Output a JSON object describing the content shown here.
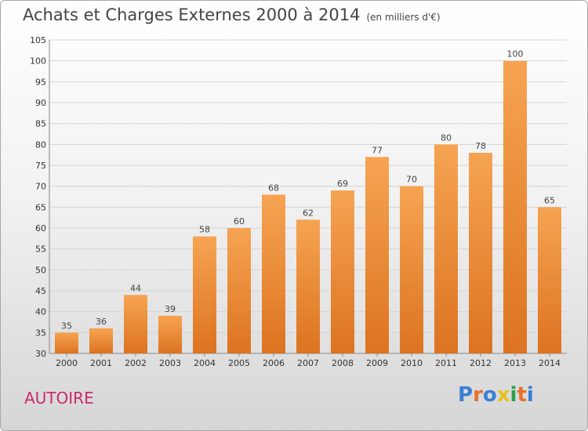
{
  "header": {
    "title": "Achats et Charges Externes 2000 à 2014",
    "subtitle": "(en milliers d'€)"
  },
  "footer": {
    "commune": "AUTOIRE",
    "logo": "Proxiti",
    "logo_colors": [
      "#3a7fd5",
      "#e8722a",
      "#3a7fd5",
      "#e8c21a",
      "#2aa04a",
      "#e8722a",
      "#3a7fd5"
    ]
  },
  "chart_data": {
    "type": "bar",
    "categories": [
      "2000",
      "2001",
      "2002",
      "2003",
      "2004",
      "2005",
      "2006",
      "2007",
      "2008",
      "2009",
      "2010",
      "2011",
      "2012",
      "2013",
      "2014"
    ],
    "values": [
      35,
      36,
      44,
      39,
      58,
      60,
      68,
      62,
      69,
      77,
      70,
      80,
      78,
      100,
      65
    ],
    "ylim": [
      30,
      105
    ],
    "yticks": [
      30,
      35,
      40,
      45,
      50,
      55,
      60,
      65,
      70,
      75,
      80,
      85,
      90,
      95,
      100,
      105
    ],
    "grid": true,
    "bar_color_top": "#f6a452",
    "bar_color_bottom": "#dc7320"
  }
}
